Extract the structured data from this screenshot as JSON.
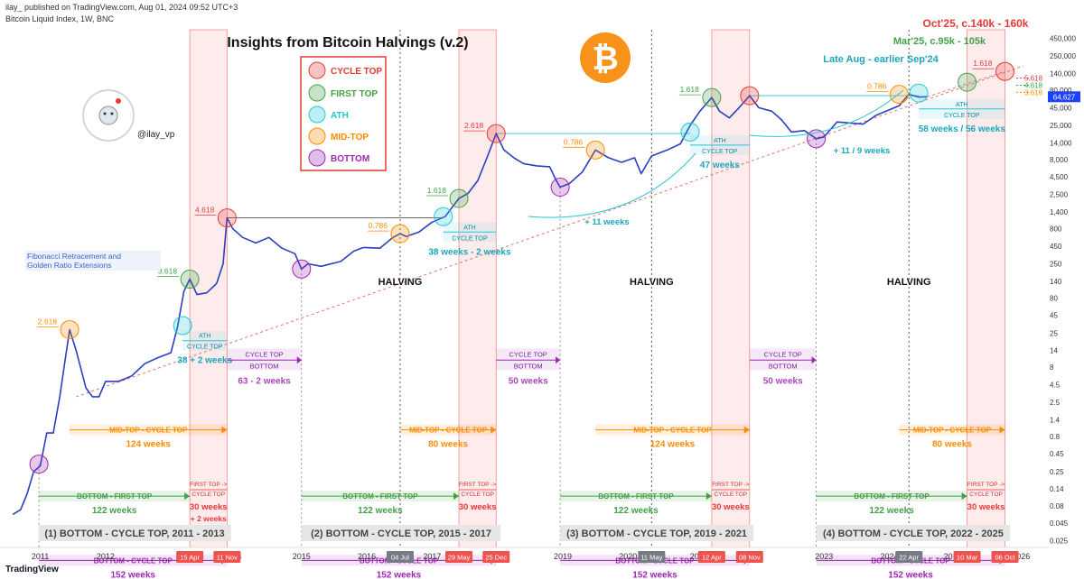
{
  "header": {
    "publisher": "ilay_ published on TradingView.com, Aug 01, 2024 09:52 UTC+3",
    "symbol": "Bitcoin Liquid Index, 1W, BNC",
    "footer_brand": "TradingView"
  },
  "chart_data": {
    "type": "line",
    "title": "Insights from Bitcoin Halvings (v.2)",
    "scale": "log",
    "handle": "@ilay_vp",
    "colors": {
      "price": "#2a3fbf",
      "cycle_top": "#e53935",
      "first_top": "#43a047",
      "ath": "#26c6da",
      "mid_top": "#fb8c00",
      "bottom": "#9c27b0"
    },
    "legend": [
      {
        "label": "CYCLE TOP",
        "color": "#e53935"
      },
      {
        "label": "FIRST TOP",
        "color": "#43a047"
      },
      {
        "label": "ATH",
        "color": "#26c6da"
      },
      {
        "label": "MID-TOP",
        "color": "#fb8c00"
      },
      {
        "label": "BOTTOM",
        "color": "#9c27b0"
      }
    ],
    "y_ticks": [
      "450,000",
      "250,000",
      "140,000",
      "80,000",
      "45,000",
      "25,000",
      "14,000",
      "8,000",
      "4,500",
      "2,500",
      "1,400",
      "800",
      "450",
      "250",
      "140",
      "80",
      "45",
      "25",
      "14",
      "8",
      "4.5",
      "2.5",
      "1.4",
      "0.8",
      "0.45",
      "0.25",
      "0.14",
      "0.08",
      "0.045",
      "0.025"
    ],
    "y_tick_values": [
      450000,
      250000,
      140000,
      80000,
      45000,
      25000,
      14000,
      8000,
      4500,
      2500,
      1400,
      800,
      450,
      250,
      140,
      80,
      45,
      25,
      14,
      8,
      4.5,
      2.5,
      1.4,
      0.8,
      0.45,
      0.25,
      0.14,
      0.08,
      0.045,
      0.025
    ],
    "x_ticks": [
      {
        "label": "2011",
        "t": 2011.0
      },
      {
        "label": "2012",
        "t": 2012.0
      },
      {
        "label": "2015",
        "t": 2015.0
      },
      {
        "label": "2016",
        "t": 2016.0
      },
      {
        "label": "2017",
        "t": 2017.0
      },
      {
        "label": "2019",
        "t": 2019.0
      },
      {
        "label": "2020",
        "t": 2020.0
      },
      {
        "label": "2023",
        "t": 2023.0
      },
      {
        "label": "2024",
        "t": 2024.0
      }
    ],
    "x_date_badges": [
      {
        "label": "15 Apr",
        "t": 2013.29,
        "kind": "red"
      },
      {
        "label": "11 Nov",
        "t": 2013.86,
        "kind": "red"
      },
      {
        "label": "04 Jul",
        "t": 2016.51,
        "kind": "gray"
      },
      {
        "label": "29 May",
        "t": 2017.41,
        "kind": "red"
      },
      {
        "label": "25 Dec",
        "t": 2017.98,
        "kind": "red"
      },
      {
        "label": "11 May",
        "t": 2020.36,
        "kind": "gray"
      },
      {
        "label": "12 Apr",
        "t": 2021.28,
        "kind": "red"
      },
      {
        "label": "08 Nov",
        "t": 2021.86,
        "kind": "red"
      },
      {
        "label": "22 Apr",
        "t": 2024.3,
        "kind": "gray"
      },
      {
        "label": "10 Mar",
        "t": 2025.19,
        "kind": "red"
      },
      {
        "label": "06 Oct",
        "t": 2025.77,
        "kind": "red"
      }
    ],
    "x_partial_labels": [
      {
        "label": "4",
        "t": 2014.05
      },
      {
        "label": "026",
        "t": 2026.05
      },
      {
        "label": "202",
        "t": 2021.05
      },
      {
        "label": "20",
        "t": 2024.9
      }
    ],
    "price_series": {
      "t": [
        2010.58,
        2010.7,
        2010.8,
        2010.9,
        2011.0,
        2011.1,
        2011.2,
        2011.3,
        2011.38,
        2011.45,
        2011.55,
        2011.7,
        2011.8,
        2011.9,
        2012.0,
        2012.2,
        2012.4,
        2012.6,
        2012.8,
        2013.0,
        2013.1,
        2013.2,
        2013.29,
        2013.4,
        2013.55,
        2013.7,
        2013.8,
        2013.86,
        2013.95,
        2014.1,
        2014.3,
        2014.5,
        2014.7,
        2014.9,
        2015.0,
        2015.1,
        2015.3,
        2015.6,
        2015.8,
        2015.95,
        2016.2,
        2016.4,
        2016.51,
        2016.6,
        2016.8,
        2017.0,
        2017.2,
        2017.41,
        2017.55,
        2017.7,
        2017.85,
        2017.98,
        2018.1,
        2018.25,
        2018.4,
        2018.6,
        2018.8,
        2018.9,
        2018.96,
        2019.1,
        2019.3,
        2019.5,
        2019.7,
        2019.9,
        2020.1,
        2020.2,
        2020.36,
        2020.6,
        2020.8,
        2020.95,
        2021.1,
        2021.28,
        2021.4,
        2021.55,
        2021.7,
        2021.86,
        2022.0,
        2022.2,
        2022.35,
        2022.5,
        2022.7,
        2022.88,
        2023.0,
        2023.2,
        2023.4,
        2023.6,
        2023.8,
        2024.0,
        2024.15,
        2024.3,
        2024.45,
        2024.58
      ],
      "v": [
        0.06,
        0.07,
        0.12,
        0.25,
        0.3,
        0.9,
        0.9,
        3,
        10,
        28,
        14,
        4,
        3,
        3,
        5,
        5,
        6,
        9,
        11,
        13,
        30,
        100,
        150,
        90,
        95,
        130,
        250,
        1150,
        800,
        600,
        500,
        600,
        420,
        350,
        210,
        250,
        230,
        270,
        380,
        430,
        420,
        600,
        680,
        620,
        720,
        1000,
        1200,
        2200,
        2600,
        4000,
        9000,
        19000,
        11000,
        8500,
        7000,
        6500,
        6300,
        4000,
        3200,
        3600,
        5300,
        11000,
        8500,
        7300,
        8500,
        5000,
        9000,
        11000,
        13500,
        25000,
        40000,
        63000,
        40000,
        32000,
        45000,
        67000,
        45000,
        40000,
        30000,
        20000,
        21000,
        16000,
        17000,
        28000,
        27000,
        26000,
        35000,
        42000,
        48000,
        70000,
        64000,
        64627
      ]
    },
    "markers": [
      {
        "type": "bottom",
        "t": 2010.98,
        "v": 0.32
      },
      {
        "type": "mid_top",
        "t": 2011.45,
        "v": 28,
        "fib": "2.618"
      },
      {
        "type": "ath",
        "t": 2013.18,
        "v": 32
      },
      {
        "type": "first_top",
        "t": 2013.29,
        "v": 150,
        "fib": "3.618"
      },
      {
        "type": "cycle_top",
        "t": 2013.86,
        "v": 1150,
        "fib": "4.618"
      },
      {
        "type": "bottom",
        "t": 2015.0,
        "v": 210
      },
      {
        "type": "mid_top",
        "t": 2016.51,
        "v": 680,
        "fib": "0.786"
      },
      {
        "type": "ath",
        "t": 2017.17,
        "v": 1200
      },
      {
        "type": "first_top",
        "t": 2017.41,
        "v": 2200,
        "fib": "1.618"
      },
      {
        "type": "cycle_top",
        "t": 2017.98,
        "v": 19000,
        "fib": "2.618"
      },
      {
        "type": "bottom",
        "t": 2018.96,
        "v": 3200
      },
      {
        "type": "mid_top",
        "t": 2019.5,
        "v": 11000,
        "fib": "0.786"
      },
      {
        "type": "ath",
        "t": 2020.95,
        "v": 20000
      },
      {
        "type": "first_top",
        "t": 2021.28,
        "v": 63000,
        "fib": "1.618"
      },
      {
        "type": "cycle_top",
        "t": 2021.86,
        "v": 67000
      },
      {
        "type": "bottom",
        "t": 2022.88,
        "v": 16000
      },
      {
        "type": "mid_top",
        "t": 2024.15,
        "v": 70000,
        "fib": "0.786"
      },
      {
        "type": "ath",
        "t": 2024.45,
        "v": 73000
      },
      {
        "type": "first_top",
        "t": 2025.19,
        "v": 105000
      },
      {
        "type": "cycle_top",
        "t": 2025.77,
        "v": 150000,
        "fib": "1.618"
      }
    ],
    "shaded_cycles": [
      [
        2013.29,
        2013.86
      ],
      [
        2017.41,
        2017.98
      ],
      [
        2021.28,
        2021.86
      ],
      [
        2025.19,
        2025.77
      ]
    ],
    "halvings": [
      {
        "label": "HALVING",
        "t": 2016.51
      },
      {
        "label": "HALVING",
        "t": 2020.36
      },
      {
        "label": "HALVING",
        "t": 2024.3
      }
    ],
    "cycle_titles": [
      {
        "label": "(1) BOTTOM - CYCLE TOP, 2011 - 2013",
        "t0": 2010.97,
        "t1": 2013.92
      },
      {
        "label": "(2) BOTTOM - CYCLE TOP, 2015 - 2017",
        "t0": 2015.0,
        "t1": 2018.05
      },
      {
        "label": "(3) BOTTOM - CYCLE TOP, 2019 - 2021",
        "t0": 2018.96,
        "t1": 2021.92
      },
      {
        "label": "(4) BOTTOM - CYCLE TOP, 2022 - 2025",
        "t0": 2022.88,
        "t1": 2025.85
      }
    ],
    "ranges": [
      {
        "kind": "mid_top",
        "label": "MID-TOP - CYCLE TOP",
        "weeks": "124 weeks",
        "t0": 2011.45,
        "t1": 2013.86,
        "v": 1.0
      },
      {
        "kind": "mid_top",
        "label": "MID-TOP - CYCLE TOP",
        "weeks": "80 weeks",
        "t0": 2016.51,
        "t1": 2017.98,
        "v": 1.0
      },
      {
        "kind": "mid_top",
        "label": "MID-TOP - CYCLE TOP",
        "weeks": "124 weeks",
        "t0": 2019.5,
        "t1": 2021.86,
        "v": 1.0
      },
      {
        "kind": "mid_top",
        "label": "MID-TOP - CYCLE TOP",
        "weeks": "80 weeks",
        "t0": 2024.15,
        "t1": 2025.77,
        "v": 1.0
      },
      {
        "kind": "first_top",
        "label": "BOTTOM - FIRST TOP",
        "weeks": "122 weeks",
        "t0": 2010.98,
        "t1": 2013.29,
        "v": 0.11
      },
      {
        "kind": "first_top",
        "label": "BOTTOM - FIRST TOP",
        "weeks": "122 weeks",
        "t0": 2015.0,
        "t1": 2017.41,
        "v": 0.11
      },
      {
        "kind": "first_top",
        "label": "BOTTOM - FIRST TOP",
        "weeks": "122 weeks",
        "t0": 2018.96,
        "t1": 2021.28,
        "v": 0.11
      },
      {
        "kind": "first_top",
        "label": "BOTTOM - FIRST TOP",
        "weeks": "122 weeks",
        "t0": 2022.88,
        "t1": 2025.19,
        "v": 0.11
      },
      {
        "kind": "bottom",
        "label": "BOTTOM - CYCLE TOP",
        "weeks": "152 weeks",
        "t0": 2010.98,
        "t1": 2013.86,
        "v": 0.013
      },
      {
        "kind": "bottom",
        "label": "BOTTOM - CYCLE TOP",
        "weeks": "152 weeks",
        "t0": 2015.0,
        "t1": 2017.98,
        "v": 0.013
      },
      {
        "kind": "bottom",
        "label": "BOTTOM - CYCLE TOP",
        "weeks": "152 weeks",
        "t0": 2018.96,
        "t1": 2021.86,
        "v": 0.013
      },
      {
        "kind": "bottom",
        "label": "BOTTOM - CYCLE TOP",
        "weeks": "152 weeks",
        "t0": 2022.88,
        "t1": 2025.77,
        "v": 0.013
      }
    ],
    "ath_boxes": [
      {
        "top": "ATH",
        "bottom": "CYCLE TOP",
        "weeks": "38 + 2 weeks",
        "t0": 2013.18,
        "t1": 2013.86,
        "v": 27
      },
      {
        "top": "ATH",
        "bottom": "CYCLE TOP",
        "weeks": "38 weeks - 2 weeks",
        "t0": 2017.17,
        "t1": 2017.98,
        "v": 1000
      },
      {
        "top": "ATH",
        "bottom": "CYCLE TOP",
        "weeks": "47 weeks",
        "t0": 2020.95,
        "t1": 2021.86,
        "v": 18000
      },
      {
        "top": "ATH",
        "bottom": "CYCLE TOP",
        "weeks": "58 weeks / 56 weeks",
        "t0": 2024.45,
        "t1": 2025.77,
        "v": 60000
      }
    ],
    "bottom_boxes": [
      {
        "top": "CYCLE TOP",
        "bottom": "BOTTOM",
        "weeks": "63 - 2 weeks",
        "t0": 2013.86,
        "t1": 2015.0,
        "v": 15
      },
      {
        "top": "CYCLE TOP",
        "bottom": "BOTTOM",
        "weeks": "50 weeks",
        "t0": 2017.98,
        "t1": 2018.96,
        "v": 15
      },
      {
        "top": "CYCLE TOP",
        "bottom": "BOTTOM",
        "weeks": "50 weeks",
        "t0": 2021.86,
        "t1": 2022.88,
        "v": 15
      }
    ],
    "first_top_boxes": [
      {
        "line1": "FIRST TOP ->",
        "line2": "CYCLE TOP",
        "weeks": "30 weeks",
        "extra": "+ 2 weeks",
        "t0": 2013.29,
        "t1": 2013.86
      },
      {
        "line1": "FIRST TOP ->",
        "line2": "CYCLE TOP",
        "weeks": "30 weeks",
        "extra": "",
        "t0": 2017.41,
        "t1": 2017.98
      },
      {
        "line1": "FIRST TOP ->",
        "line2": "CYCLE TOP",
        "weeks": "30 weeks",
        "extra": "",
        "t0": 2021.28,
        "t1": 2021.86
      },
      {
        "line1": "FIRST TOP ->",
        "line2": "CYCLE TOP",
        "weeks": "30 weeks",
        "extra": "",
        "t0": 2025.19,
        "t1": 2025.77
      }
    ],
    "annotations": {
      "fib_note": "Fibonacci Retracement and Golden Ratio Extensions",
      "plus_11_weeks": "+ 11 weeks",
      "plus_11_9_weeks": "+ 11 / 9 weeks",
      "late_aug": "Late Aug - earlier Sep'24",
      "mar25": "Mar'25, c.95k - 105k",
      "oct25": "Oct'25, c.140k - 160k"
    },
    "right_levels": [
      {
        "label": "5.618",
        "color": "#e53935",
        "v": 120000
      },
      {
        "label": "4.618",
        "color": "#43a047",
        "v": 95000
      },
      {
        "label": "3.618",
        "color": "#fb8c00",
        "v": 75000
      }
    ],
    "current_price": {
      "label": "64,627",
      "v": 64627
    }
  }
}
